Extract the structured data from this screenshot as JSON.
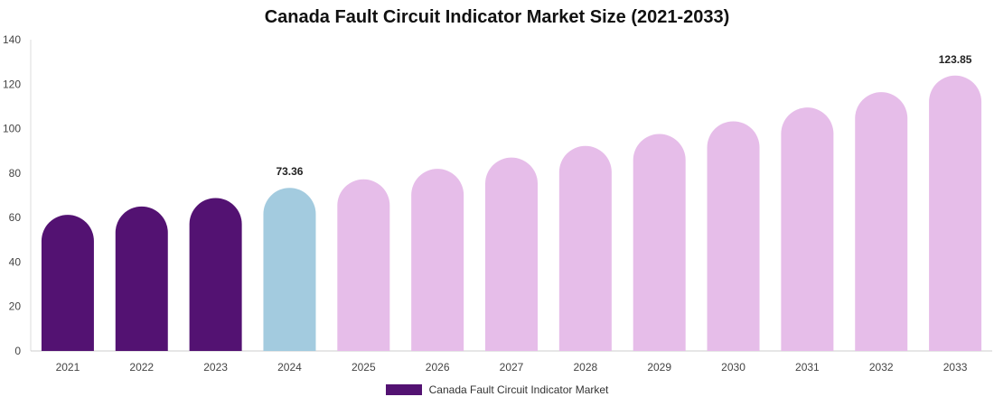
{
  "chart_data": {
    "type": "bar",
    "title": "Canada Fault Circuit Indicator Market Size (2021-2033)",
    "xlabel": "",
    "ylabel": "",
    "ylim": [
      0,
      140
    ],
    "yticks": [
      0,
      20,
      40,
      60,
      80,
      100,
      120,
      140
    ],
    "categories": [
      "2021",
      "2022",
      "2023",
      "2024",
      "2025",
      "2026",
      "2027",
      "2028",
      "2029",
      "2030",
      "2031",
      "2032",
      "2033"
    ],
    "series": [
      {
        "name": "Canada Fault Circuit Indicator Market",
        "values": [
          61.2,
          65.0,
          68.8,
          73.36,
          77.2,
          81.9,
          87.0,
          92.2,
          97.6,
          103.3,
          109.5,
          116.4,
          123.85
        ]
      }
    ],
    "data_labels": [
      {
        "category": "2024",
        "text": "73.36"
      },
      {
        "category": "2033",
        "text": "123.85"
      }
    ],
    "bar_colors": {
      "historical": "#531272",
      "base_year": "#a3cbdf",
      "forecast": "#e6bde9"
    },
    "legend_color": "#531272",
    "legend_position": "bottom-center",
    "grid": false
  }
}
